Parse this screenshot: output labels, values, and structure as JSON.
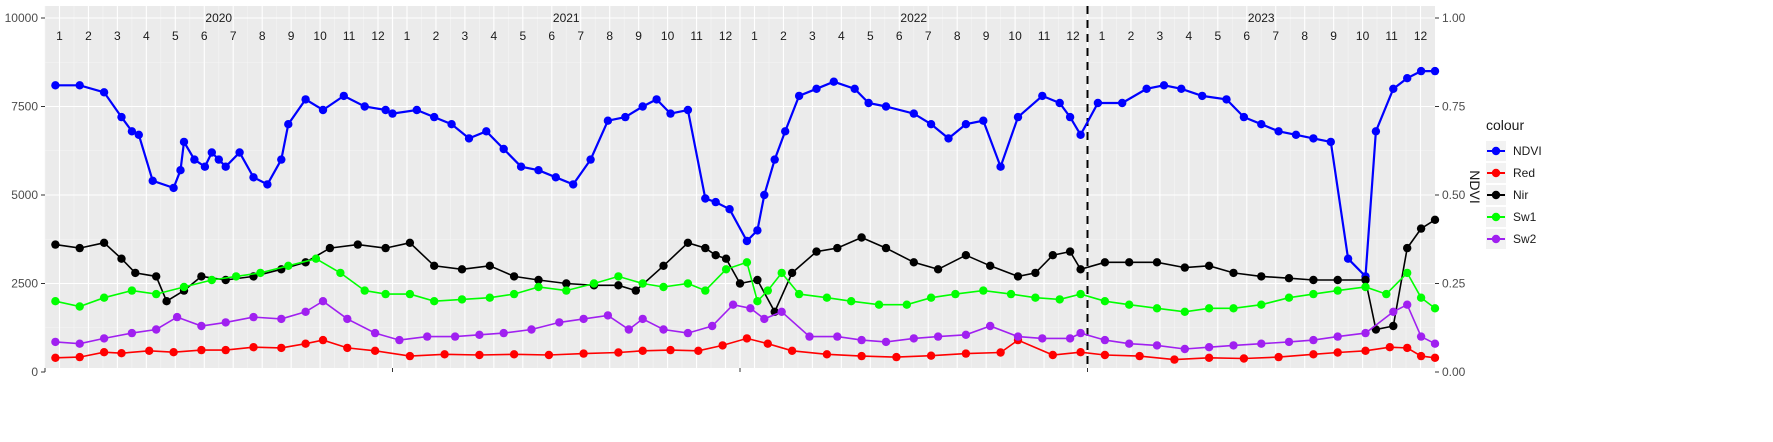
{
  "chart_data": {
    "type": "line",
    "title": "",
    "xlabel": "",
    "ylabel": "",
    "y2label": "NDVI",
    "ylim": [
      0,
      10000
    ],
    "y2lim": [
      0,
      1
    ],
    "yticks": [
      "0",
      "2500",
      "5000",
      "7500",
      "10000"
    ],
    "y2ticks": [
      "0.00",
      "0.25",
      "0.50",
      "0.75",
      "1.00"
    ],
    "xlim": [
      2020.0,
      2024.0
    ],
    "year_labels": [
      "2020",
      "2021",
      "2022",
      "2023"
    ],
    "month_labels": [
      "1",
      "2",
      "3",
      "4",
      "5",
      "6",
      "7",
      "8",
      "9",
      "10",
      "11",
      "12"
    ],
    "vline_x": 2023.0,
    "grid": true,
    "legend_title": "colour",
    "legend_position": "right",
    "series": [
      {
        "name": "NDVI",
        "color": "#0000ff",
        "x": [
          2020.03,
          2020.1,
          2020.17,
          2020.22,
          2020.25,
          2020.27,
          2020.31,
          2020.37,
          2020.39,
          2020.4,
          2020.43,
          2020.46,
          2020.48,
          2020.5,
          2020.52,
          2020.56,
          2020.6,
          2020.64,
          2020.68,
          2020.7,
          2020.75,
          2020.8,
          2020.86,
          2020.92,
          2020.98,
          2021.0,
          2021.07,
          2021.12,
          2021.17,
          2021.22,
          2021.27,
          2021.32,
          2021.37,
          2021.42,
          2021.47,
          2021.52,
          2021.57,
          2021.62,
          2021.67,
          2021.72,
          2021.76,
          2021.8,
          2021.85,
          2021.9,
          2021.93,
          2021.97,
          2022.02,
          2022.05,
          2022.07,
          2022.1,
          2022.13,
          2022.17,
          2022.22,
          2022.27,
          2022.33,
          2022.37,
          2022.42,
          2022.5,
          2022.55,
          2022.6,
          2022.65,
          2022.7,
          2022.75,
          2022.8,
          2022.87,
          2022.92,
          2022.95,
          2022.98,
          2023.03,
          2023.1,
          2023.17,
          2023.22,
          2023.27,
          2023.33,
          2023.4,
          2023.45,
          2023.5,
          2023.55,
          2023.6,
          2023.65,
          2023.7,
          2023.75,
          2023.8,
          2023.83,
          2023.88,
          2023.92,
          2023.96,
          2024.0
        ],
        "y": [
          0.81,
          0.81,
          0.79,
          0.72,
          0.68,
          0.67,
          0.54,
          0.52,
          0.57,
          0.65,
          0.6,
          0.58,
          0.62,
          0.6,
          0.58,
          0.62,
          0.55,
          0.53,
          0.6,
          0.7,
          0.77,
          0.74,
          0.78,
          0.75,
          0.74,
          0.73,
          0.74,
          0.72,
          0.7,
          0.66,
          0.68,
          0.63,
          0.58,
          0.57,
          0.55,
          0.53,
          0.6,
          0.71,
          0.72,
          0.75,
          0.77,
          0.73,
          0.74,
          0.49,
          0.48,
          0.46,
          0.37,
          0.4,
          0.5,
          0.6,
          0.68,
          0.78,
          0.8,
          0.82,
          0.8,
          0.76,
          0.75,
          0.73,
          0.7,
          0.66,
          0.7,
          0.71,
          0.58,
          0.72,
          0.78,
          0.76,
          0.72,
          0.67,
          0.76,
          0.76,
          0.8,
          0.81,
          0.8,
          0.78,
          0.77,
          0.72,
          0.7,
          0.68,
          0.67,
          0.66,
          0.65,
          0.32,
          0.27,
          0.68,
          0.8,
          0.83,
          0.85,
          0.85
        ]
      },
      {
        "name": "Red",
        "color": "#ff0000",
        "x": [
          2020.03,
          2020.1,
          2020.17,
          2020.22,
          2020.3,
          2020.37,
          2020.45,
          2020.52,
          2020.6,
          2020.68,
          2020.75,
          2020.8,
          2020.87,
          2020.95,
          2021.05,
          2021.15,
          2021.25,
          2021.35,
          2021.45,
          2021.55,
          2021.65,
          2021.72,
          2021.8,
          2021.88,
          2021.95,
          2022.02,
          2022.08,
          2022.15,
          2022.25,
          2022.35,
          2022.45,
          2022.55,
          2022.65,
          2022.75,
          2022.8,
          2022.9,
          2022.98,
          2023.05,
          2023.15,
          2023.25,
          2023.35,
          2023.45,
          2023.55,
          2023.65,
          2023.72,
          2023.8,
          2023.87,
          2023.92,
          2023.96,
          2024.0
        ],
        "y": [
          400,
          420,
          560,
          530,
          600,
          560,
          620,
          620,
          700,
          680,
          800,
          900,
          680,
          600,
          450,
          500,
          480,
          500,
          480,
          520,
          550,
          600,
          620,
          600,
          750,
          950,
          800,
          600,
          500,
          450,
          420,
          460,
          520,
          550,
          900,
          480,
          560,
          480,
          450,
          350,
          400,
          380,
          420,
          500,
          550,
          600,
          700,
          680,
          450,
          400
        ]
      },
      {
        "name": "Nir",
        "color": "#000000",
        "x": [
          2020.03,
          2020.1,
          2020.17,
          2020.22,
          2020.26,
          2020.32,
          2020.35,
          2020.4,
          2020.45,
          2020.52,
          2020.6,
          2020.68,
          2020.75,
          2020.82,
          2020.9,
          2020.98,
          2021.05,
          2021.12,
          2021.2,
          2021.28,
          2021.35,
          2021.42,
          2021.5,
          2021.58,
          2021.65,
          2021.7,
          2021.78,
          2021.85,
          2021.9,
          2021.93,
          2021.96,
          2022.0,
          2022.05,
          2022.1,
          2022.15,
          2022.22,
          2022.28,
          2022.35,
          2022.42,
          2022.5,
          2022.57,
          2022.65,
          2022.72,
          2022.8,
          2022.85,
          2022.9,
          2022.95,
          2022.98,
          2023.05,
          2023.12,
          2023.2,
          2023.28,
          2023.35,
          2023.42,
          2023.5,
          2023.58,
          2023.65,
          2023.72,
          2023.8,
          2023.83,
          2023.88,
          2023.92,
          2023.96,
          2024.0
        ],
        "y": [
          3600,
          3500,
          3650,
          3200,
          2800,
          2700,
          2000,
          2300,
          2700,
          2600,
          2700,
          2900,
          3100,
          3500,
          3600,
          3500,
          3650,
          3000,
          2900,
          3000,
          2700,
          2600,
          2500,
          2450,
          2450,
          2300,
          3000,
          3650,
          3500,
          3300,
          3200,
          2500,
          2600,
          1700,
          2800,
          3400,
          3500,
          3800,
          3500,
          3100,
          2900,
          3300,
          3000,
          2700,
          2800,
          3300,
          3400,
          2900,
          3100,
          3100,
          3100,
          2950,
          3000,
          2800,
          2700,
          2650,
          2600,
          2600,
          2600,
          1200,
          1300,
          3500,
          4050,
          4300
        ]
      },
      {
        "name": "Sw1",
        "color": "#00ff00",
        "x": [
          2020.03,
          2020.1,
          2020.17,
          2020.25,
          2020.32,
          2020.4,
          2020.48,
          2020.55,
          2020.62,
          2020.7,
          2020.78,
          2020.85,
          2020.92,
          2020.98,
          2021.05,
          2021.12,
          2021.2,
          2021.28,
          2021.35,
          2021.42,
          2021.5,
          2021.58,
          2021.65,
          2021.72,
          2021.78,
          2021.85,
          2021.9,
          2021.96,
          2022.02,
          2022.05,
          2022.08,
          2022.12,
          2022.17,
          2022.25,
          2022.32,
          2022.4,
          2022.48,
          2022.55,
          2022.62,
          2022.7,
          2022.78,
          2022.85,
          2022.92,
          2022.98,
          2023.05,
          2023.12,
          2023.2,
          2023.28,
          2023.35,
          2023.42,
          2023.5,
          2023.58,
          2023.65,
          2023.72,
          2023.8,
          2023.86,
          2023.92,
          2023.96,
          2024.0
        ],
        "y": [
          2000,
          1850,
          2100,
          2300,
          2200,
          2400,
          2600,
          2700,
          2800,
          3000,
          3200,
          2800,
          2300,
          2200,
          2200,
          2000,
          2050,
          2100,
          2200,
          2400,
          2300,
          2500,
          2700,
          2500,
          2400,
          2500,
          2300,
          2900,
          3100,
          2000,
          2300,
          2800,
          2200,
          2100,
          2000,
          1900,
          1900,
          2100,
          2200,
          2300,
          2200,
          2100,
          2050,
          2200,
          2000,
          1900,
          1800,
          1700,
          1800,
          1800,
          1900,
          2100,
          2200,
          2300,
          2400,
          2200,
          2800,
          2100,
          1800
        ]
      },
      {
        "name": "Sw2",
        "color": "#a020f0",
        "x": [
          2020.03,
          2020.1,
          2020.17,
          2020.25,
          2020.32,
          2020.38,
          2020.45,
          2020.52,
          2020.6,
          2020.68,
          2020.75,
          2020.8,
          2020.87,
          2020.95,
          2021.02,
          2021.1,
          2021.18,
          2021.25,
          2021.32,
          2021.4,
          2021.48,
          2021.55,
          2021.62,
          2021.68,
          2021.72,
          2021.78,
          2021.85,
          2021.92,
          2021.98,
          2022.03,
          2022.07,
          2022.12,
          2022.2,
          2022.28,
          2022.35,
          2022.42,
          2022.5,
          2022.57,
          2022.65,
          2022.72,
          2022.8,
          2022.87,
          2022.95,
          2022.98,
          2023.05,
          2023.12,
          2023.2,
          2023.28,
          2023.35,
          2023.42,
          2023.5,
          2023.58,
          2023.65,
          2023.72,
          2023.8,
          2023.88,
          2023.92,
          2023.96,
          2024.0
        ],
        "y": [
          850,
          800,
          950,
          1100,
          1200,
          1550,
          1300,
          1400,
          1550,
          1500,
          1700,
          2000,
          1500,
          1100,
          900,
          1000,
          1000,
          1050,
          1100,
          1200,
          1400,
          1500,
          1600,
          1200,
          1500,
          1200,
          1100,
          1300,
          1900,
          1800,
          1500,
          1700,
          1000,
          1000,
          900,
          850,
          950,
          1000,
          1050,
          1300,
          1000,
          950,
          950,
          1100,
          900,
          800,
          750,
          650,
          700,
          750,
          800,
          850,
          900,
          1000,
          1100,
          1700,
          1900,
          1000,
          800
        ]
      }
    ]
  }
}
